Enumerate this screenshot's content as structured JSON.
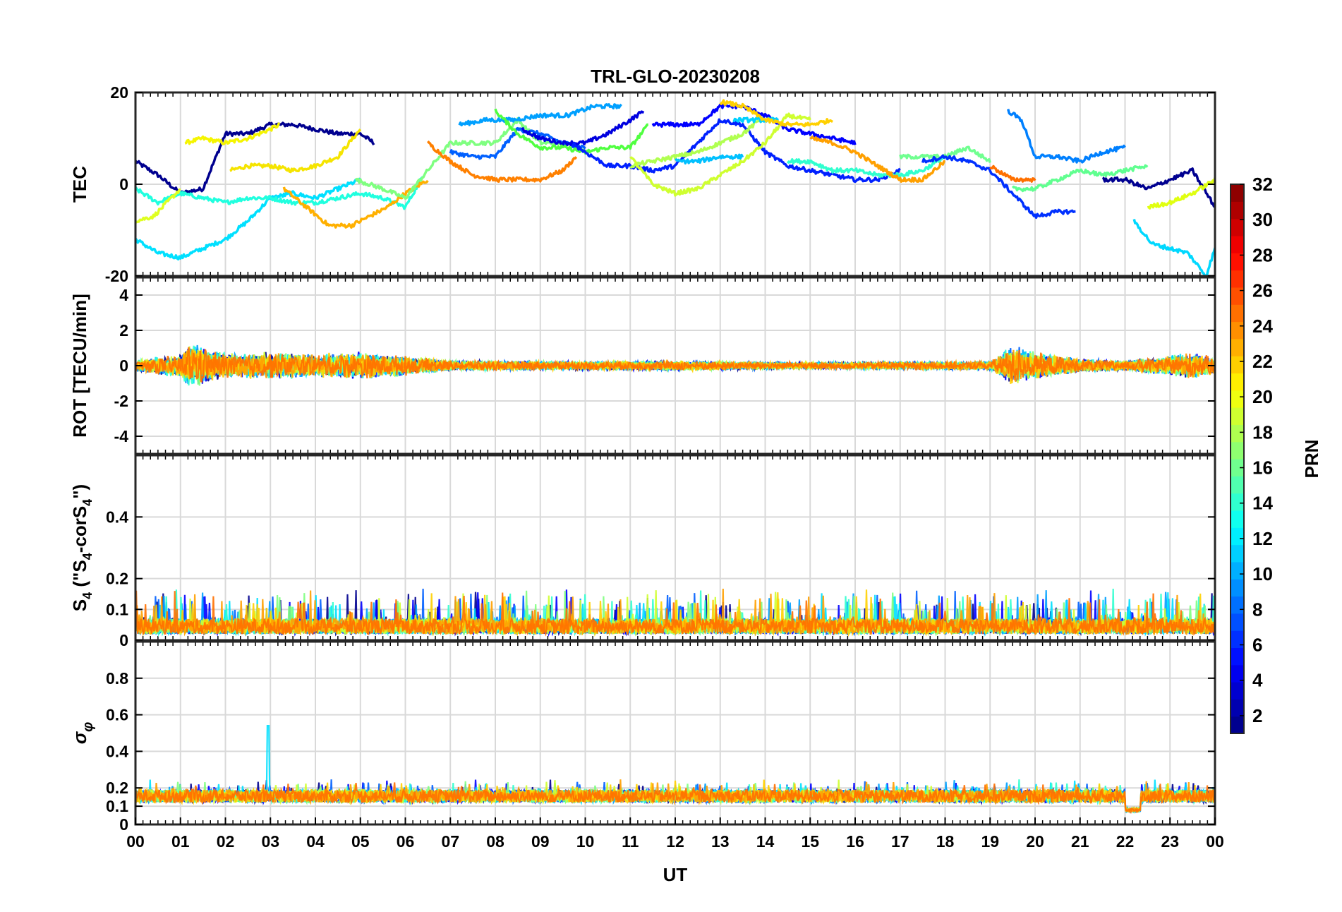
{
  "chart_data": {
    "type": "line",
    "title": "TRL-GLO-20230208",
    "xlabel": "UT",
    "x_ticks": [
      "00",
      "01",
      "02",
      "03",
      "04",
      "05",
      "06",
      "07",
      "08",
      "09",
      "10",
      "11",
      "12",
      "13",
      "14",
      "15",
      "16",
      "17",
      "18",
      "19",
      "20",
      "21",
      "22",
      "23",
      "00"
    ],
    "xlim_hours": [
      0,
      24
    ],
    "grid": true,
    "panels": [
      {
        "id": "tec",
        "ylabel": "TEC",
        "ylim": [
          -20,
          20
        ],
        "y_ticks": [
          "-20",
          "0",
          "20"
        ],
        "y_tick_values": [
          -20,
          0,
          20
        ],
        "series": [
          {
            "prn": 2,
            "color": "#00008f",
            "x": [
              0.0,
              0.5,
              1.0,
              1.5,
              2.0,
              2.5,
              3.0,
              3.5,
              4.0,
              4.5,
              5.0,
              5.3
            ],
            "y": [
              5,
              2,
              -2,
              -1,
              11,
              11,
              13,
              13,
              12,
              11,
              11,
              9
            ]
          },
          {
            "prn": 20,
            "color": "#f5f500",
            "x": [
              1.1,
              1.5,
              2.0,
              2.5,
              3.0,
              3.2
            ],
            "y": [
              9,
              10,
              9,
              10,
              12,
              13
            ]
          },
          {
            "prn": 20,
            "color": "#f5e400",
            "x": [
              2.1,
              2.5,
              3.0,
              3.5,
              4.0,
              4.5,
              5.0
            ],
            "y": [
              3,
              4,
              4,
              3,
              4,
              6,
              12
            ]
          },
          {
            "prn": 12,
            "color": "#00e0ff",
            "x": [
              0.0,
              0.5,
              1.0,
              1.5,
              2.0,
              2.5,
              3.0,
              3.5,
              4.0,
              4.5,
              5.0
            ],
            "y": [
              -12,
              -15,
              -16,
              -14,
              -12,
              -8,
              -3,
              -2,
              -3,
              -1,
              1
            ]
          },
          {
            "prn": 13,
            "color": "#20ffdf",
            "x": [
              0.0,
              0.5,
              1.0,
              1.5,
              2.0,
              2.5,
              3.0,
              3.5,
              4.0,
              4.5,
              5.0,
              5.5,
              6.0,
              6.4
            ],
            "y": [
              -1,
              -4,
              -2,
              -3,
              -4,
              -3,
              -3,
              -4,
              -4,
              -3,
              -2,
              -3,
              -5,
              2
            ]
          },
          {
            "prn": 19,
            "color": "#dfff20",
            "x": [
              0.0,
              0.4,
              0.8,
              1.0
            ],
            "y": [
              -8,
              -7,
              -3,
              -1
            ]
          },
          {
            "prn": 22,
            "color": "#ffb000",
            "x": [
              3.3,
              3.8,
              4.3,
              4.8,
              5.2,
              5.6,
              6.0,
              6.5
            ],
            "y": [
              -1,
              -5,
              -9,
              -9,
              -7,
              -5,
              -2,
              1
            ]
          },
          {
            "prn": 16,
            "color": "#7fff80",
            "x": [
              4.9,
              5.5,
              6.0,
              6.5,
              7.0,
              7.5,
              8.0,
              8.5,
              9.0,
              9.5
            ],
            "y": [
              1,
              -1,
              -3,
              3,
              9,
              9,
              9,
              14,
              9,
              9
            ]
          },
          {
            "prn": 24,
            "color": "#ff8000",
            "x": [
              6.5,
              7.0,
              7.5,
              8.0,
              8.5,
              9.0,
              9.5,
              9.8
            ],
            "y": [
              9,
              5,
              2,
              1,
              1,
              1,
              3,
              6
            ]
          },
          {
            "prn": 7,
            "color": "#0060ff",
            "x": [
              7.0,
              7.5,
              8.0,
              8.5,
              9.0,
              9.5,
              10.0
            ],
            "y": [
              7,
              6,
              6,
              12,
              11,
              9,
              8
            ]
          },
          {
            "prn": 9,
            "color": "#00a0ff",
            "x": [
              7.2,
              7.8,
              8.4,
              9.0,
              9.6,
              10.2,
              10.8
            ],
            "y": [
              13,
              14,
              14,
              15,
              15,
              17,
              17
            ]
          },
          {
            "prn": 3,
            "color": "#0000df",
            "x": [
              8.6,
              9.0,
              9.5,
              10.0,
              10.5,
              11.0,
              11.3
            ],
            "y": [
              12,
              10,
              9,
              9,
              11,
              14,
              16
            ]
          },
          {
            "prn": 15,
            "color": "#50ff40",
            "x": [
              8.0,
              8.5,
              9.0,
              9.5,
              10.0,
              10.5,
              11.0,
              11.4
            ],
            "y": [
              16,
              11,
              8,
              8,
              7,
              8,
              8,
              13
            ]
          },
          {
            "prn": 5,
            "color": "#0020ff",
            "x": [
              9.7,
              10.0,
              10.5,
              11.0,
              11.5,
              12.0,
              12.5,
              13.0,
              13.5,
              14.0,
              14.5,
              15.0,
              15.5,
              16.0,
              16.5,
              17.0
            ],
            "y": [
              9,
              7,
              4,
              4,
              3,
              4,
              9,
              14,
              13,
              7,
              4,
              3,
              2,
              1,
              1,
              3
            ]
          },
          {
            "prn": 17,
            "color": "#b0ff50",
            "x": [
              11.0,
              11.5,
              12.0,
              12.5,
              13.0,
              13.5,
              14.0
            ],
            "y": [
              4,
              5,
              6,
              7,
              9,
              11,
              15
            ]
          },
          {
            "prn": 18,
            "color": "#cfff30",
            "x": [
              11.0,
              11.5,
              12.0,
              12.5,
              13.0,
              13.5,
              14.0,
              14.5,
              15.0
            ],
            "y": [
              6,
              0,
              -2,
              -1,
              2,
              5,
              9,
              15,
              14
            ]
          },
          {
            "prn": 4,
            "color": "#0000ff",
            "x": [
              11.5,
              12.0,
              12.5,
              13.0,
              13.5,
              14.0,
              14.5,
              15.0,
              15.5,
              16.0
            ],
            "y": [
              13,
              13,
              13,
              17,
              17,
              15,
              12,
              11,
              10,
              9
            ]
          },
          {
            "prn": 10,
            "color": "#00c0ff",
            "x": [
              12.0,
              12.5,
              13.0,
              13.5
            ],
            "y": [
              5,
              5,
              6,
              6
            ]
          },
          {
            "prn": 11,
            "color": "#00d0ff",
            "x": [
              13.3,
              13.8,
              14.3
            ],
            "y": [
              14,
              14,
              14
            ]
          },
          {
            "prn": 21,
            "color": "#ffd000",
            "x": [
              13.0,
              13.5,
              14.0,
              14.5,
              15.0,
              15.5
            ],
            "y": [
              18,
              17,
              14,
              13,
              13,
              14
            ]
          },
          {
            "prn": 14,
            "color": "#30ffcf",
            "x": [
              14.5,
              15.0,
              15.5,
              16.0,
              16.5,
              17.0,
              17.5,
              18.0
            ],
            "y": [
              5,
              5,
              3,
              3,
              2,
              2,
              3,
              6
            ]
          },
          {
            "prn": 23,
            "color": "#ffa000",
            "x": [
              15.0,
              15.5,
              16.0,
              16.5,
              17.0,
              17.5,
              18.0
            ],
            "y": [
              10,
              9,
              7,
              4,
              1,
              1,
              5
            ]
          },
          {
            "prn": 16,
            "color": "#70ff90",
            "x": [
              17.0,
              17.5,
              18.0,
              18.5,
              19.0
            ],
            "y": [
              6,
              6,
              6,
              8,
              5
            ]
          },
          {
            "prn": 6,
            "color": "#0030ff",
            "x": [
              17.5,
              18.0,
              18.5,
              19.0,
              19.5,
              20.0,
              20.5,
              20.9
            ],
            "y": [
              5,
              6,
              5,
              3,
              -2,
              -7,
              -6,
              -6
            ]
          },
          {
            "prn": 24,
            "color": "#ff7000",
            "x": [
              19.0,
              19.5,
              20.0
            ],
            "y": [
              4,
              1,
              1
            ]
          },
          {
            "prn": 8,
            "color": "#0080ff",
            "x": [
              19.4,
              19.7,
              20.0,
              20.5,
              21.0,
              21.5,
              22.0
            ],
            "y": [
              16,
              14,
              6,
              6,
              5,
              7,
              8
            ]
          },
          {
            "prn": 15,
            "color": "#60ff90",
            "x": [
              19.5,
              20.0,
              20.5,
              21.0,
              21.5,
              22.0,
              22.5
            ],
            "y": [
              -1,
              -1,
              1,
              3,
              2,
              3,
              4
            ]
          },
          {
            "prn": 2,
            "color": "#000090",
            "x": [
              21.5,
              22.0,
              22.5,
              23.0,
              23.5,
              24.0
            ],
            "y": [
              1,
              1,
              -1,
              1,
              3,
              -5
            ]
          },
          {
            "prn": 19,
            "color": "#e0ff10",
            "x": [
              22.5,
              23.0,
              23.5,
              24.0
            ],
            "y": [
              -5,
              -4,
              -2,
              1
            ]
          },
          {
            "prn": 11,
            "color": "#00d8ff",
            "x": [
              22.2,
              22.6,
              23.0,
              23.4,
              23.8,
              24.0
            ],
            "y": [
              -8,
              -13,
              -14,
              -15,
              -20,
              -14
            ]
          }
        ]
      },
      {
        "id": "rot",
        "ylabel": "ROT [TECU/min]",
        "ylim": [
          -5,
          5
        ],
        "y_ticks": [
          "-4",
          "-2",
          "0",
          "2",
          "4"
        ],
        "y_tick_values": [
          -4,
          -2,
          0,
          2,
          4
        ],
        "noise_profile": {
          "x": [
            0,
            1,
            1.2,
            2,
            3,
            4,
            5,
            6,
            7,
            10,
            12,
            15,
            19,
            19.5,
            20,
            21,
            22,
            23,
            23.5,
            24
          ],
          "amp": [
            0.35,
            0.7,
            1.4,
            0.8,
            0.8,
            0.7,
            0.8,
            0.6,
            0.3,
            0.25,
            0.3,
            0.2,
            0.25,
            1.2,
            0.8,
            0.4,
            0.3,
            0.6,
            0.8,
            0.5
          ]
        }
      },
      {
        "id": "s4",
        "ylabel": "S4 (\"S4-corS4\")",
        "ylim": [
          0,
          0.6
        ],
        "y_ticks": [
          "0",
          "0.1",
          "0.2",
          "0.4"
        ],
        "y_tick_values": [
          0,
          0.1,
          0.2,
          0.4
        ],
        "noise_profile": {
          "x": [
            0,
            24
          ],
          "base": 0.05,
          "peak": 0.16
        }
      },
      {
        "id": "sigma-phi",
        "ylabel": "σφ",
        "ylim": [
          0,
          1
        ],
        "y_ticks": [
          "0",
          "0.1",
          "0.2",
          "0.4",
          "0.6",
          "0.8"
        ],
        "y_tick_values": [
          0,
          0.1,
          0.2,
          0.4,
          0.6,
          0.8
        ],
        "noise_profile": {
          "x": [
            0,
            24
          ],
          "base": 0.15,
          "peak_at": 2.95,
          "peak_value": 0.54
        }
      }
    ],
    "colorbar": {
      "label": "PRN",
      "range": [
        1,
        32
      ],
      "ticks": [
        "2",
        "4",
        "6",
        "8",
        "10",
        "12",
        "14",
        "16",
        "18",
        "20",
        "22",
        "24",
        "26",
        "28",
        "30",
        "32"
      ],
      "colormap": "jet"
    }
  }
}
